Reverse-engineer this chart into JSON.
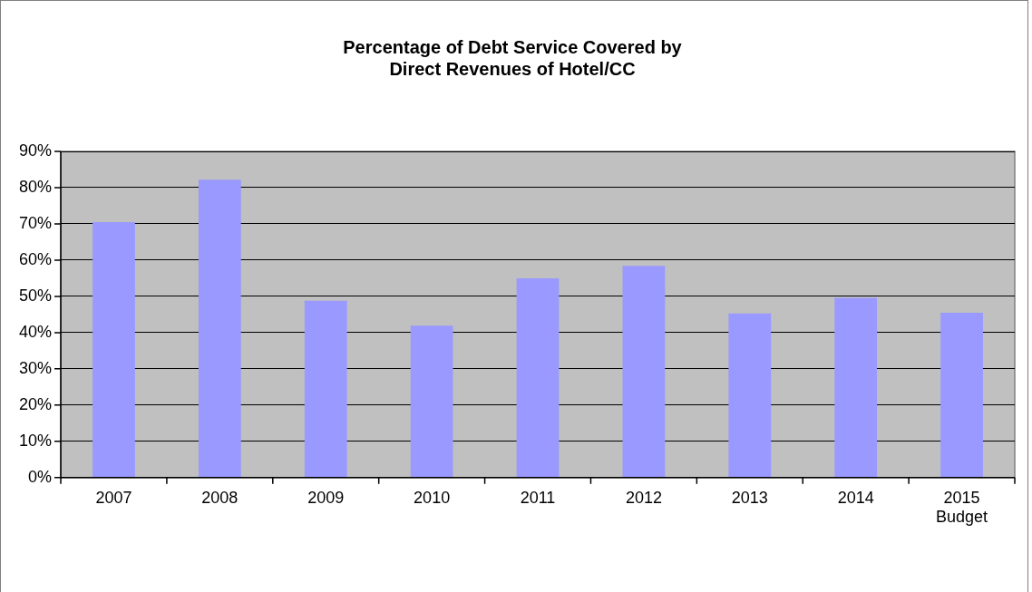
{
  "chart_data": {
    "type": "bar",
    "title": "Percentage of Debt Service Covered by\nDirect Revenues of Hotel/CC",
    "categories": [
      "2007",
      "2008",
      "2009",
      "2010",
      "2011",
      "2012",
      "2013",
      "2014",
      "2015\nBudget"
    ],
    "values": [
      70.5,
      82.2,
      48.8,
      41.9,
      55.0,
      58.4,
      45.3,
      49.6,
      45.5
    ],
    "color": "#9999ff",
    "ylim": [
      0,
      90
    ],
    "yticks": [
      {
        "value": 0,
        "label": "0%"
      },
      {
        "value": 10,
        "label": "10%"
      },
      {
        "value": 20,
        "label": "20%"
      },
      {
        "value": 30,
        "label": "30%"
      },
      {
        "value": 40,
        "label": "40%"
      },
      {
        "value": 50,
        "label": "50%"
      },
      {
        "value": 60,
        "label": "60%"
      },
      {
        "value": 70,
        "label": "70%"
      },
      {
        "value": 80,
        "label": "80%"
      },
      {
        "value": 90,
        "label": "90%"
      }
    ],
    "grid": "y",
    "legend": false
  }
}
